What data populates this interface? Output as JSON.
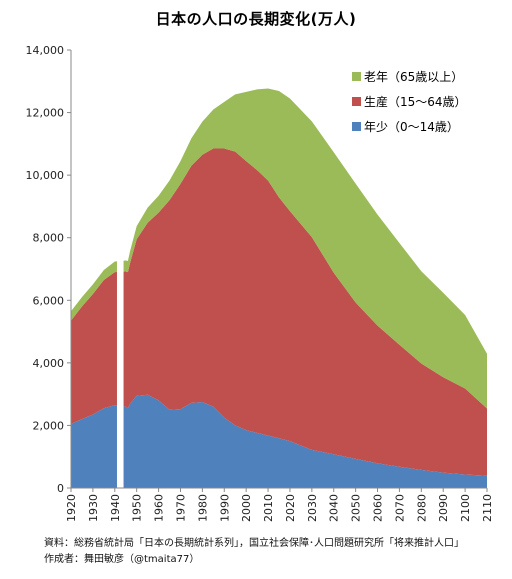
{
  "title": "日本の人口の長期変化(万人)",
  "footer": {
    "source": "資料：総務省統計局「日本の長期統計系列」，国立社会保障･人口問題研究所「将来推計人口」",
    "author": "作成者：舞田敏彦（@tmaita77）"
  },
  "colors": {
    "elderly": "#9bbb59",
    "working": "#c0504d",
    "young": "#4f81bd"
  },
  "chart_data": {
    "type": "area",
    "stacked": true,
    "title": "日本の人口の長期変化(万人)",
    "xlabel": "",
    "ylabel": "",
    "xlim": [
      1920,
      2110
    ],
    "ylim": [
      0,
      14000
    ],
    "grid": false,
    "legend_position": "top-right",
    "gap_years": [
      1941,
      1944
    ],
    "x_ticks": [
      "1920",
      "1930",
      "1940",
      "1950",
      "1960",
      "1970",
      "1980",
      "1990",
      "2000",
      "2010",
      "2020",
      "2030",
      "2040",
      "2050",
      "2060",
      "2070",
      "2080",
      "2090",
      "2100",
      "2110"
    ],
    "y_ticks": [
      "0",
      "2,000",
      "4,000",
      "6,000",
      "8,000",
      "10,000",
      "12,000",
      "14,000"
    ],
    "x": [
      1920,
      1925,
      1930,
      1935,
      1940,
      1945,
      1946,
      1947,
      1950,
      1955,
      1960,
      1965,
      1970,
      1975,
      1980,
      1985,
      1990,
      1995,
      2000,
      2005,
      2010,
      2015,
      2020,
      2030,
      2040,
      2050,
      2060,
      2070,
      2080,
      2090,
      2100,
      2110
    ],
    "series": [
      {
        "name": "年少（0〜14歳）",
        "values": [
          2050,
          2200,
          2350,
          2550,
          2650,
          2600,
          2550,
          2700,
          2950,
          2980,
          2800,
          2500,
          2520,
          2720,
          2750,
          2600,
          2250,
          2000,
          1850,
          1760,
          1680,
          1590,
          1500,
          1220,
          1080,
          930,
          790,
          680,
          580,
          490,
          430,
          390
        ]
      },
      {
        "name": "生産（15〜64歳）",
        "values": [
          3300,
          3600,
          3850,
          4100,
          4250,
          4320,
          4350,
          4500,
          5000,
          5500,
          6000,
          6700,
          7200,
          7580,
          7900,
          8250,
          8600,
          8750,
          8600,
          8400,
          8150,
          7700,
          7350,
          6800,
          5800,
          5000,
          4400,
          3900,
          3400,
          3050,
          2750,
          2150
        ]
      },
      {
        "name": "老年（65歳以上）",
        "values": [
          300,
          300,
          310,
          320,
          340,
          350,
          360,
          380,
          420,
          480,
          540,
          630,
          730,
          880,
          1060,
          1250,
          1490,
          1830,
          2210,
          2580,
          2940,
          3400,
          3600,
          3700,
          3850,
          3800,
          3550,
          3250,
          2950,
          2700,
          2350,
          1750
        ]
      }
    ]
  }
}
